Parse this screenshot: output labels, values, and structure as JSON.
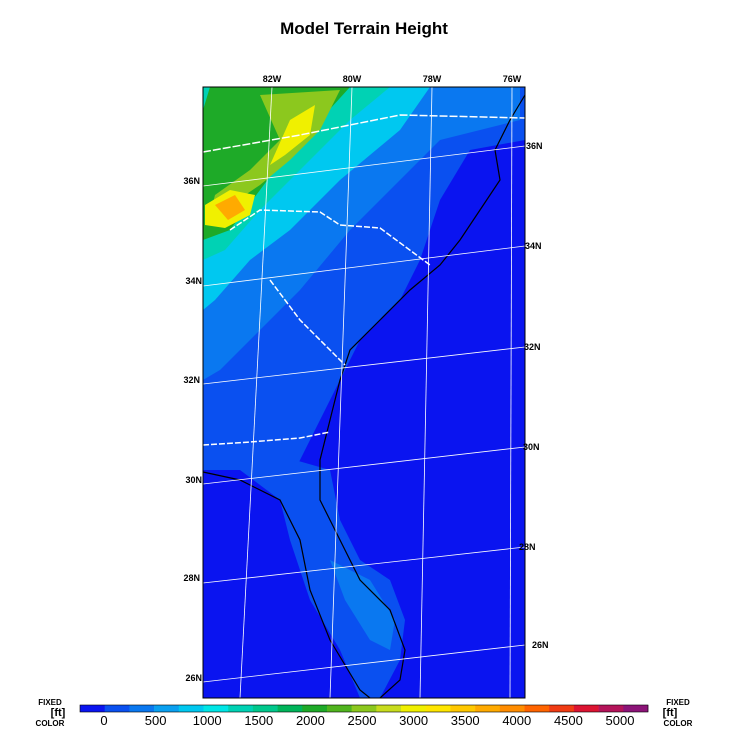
{
  "title": "Model Terrain Height",
  "lon_labels": [
    "82W",
    "80W",
    "78W",
    "76W"
  ],
  "lat_labels_left": [
    "36N",
    "34N",
    "32N",
    "30N",
    "28N",
    "26N"
  ],
  "lat_labels_right": [
    "36N",
    "34N",
    "32N",
    "30N",
    "28N",
    "26N"
  ],
  "colorbar": {
    "labels": [
      0,
      500,
      1000,
      1500,
      2000,
      2500,
      3000,
      3500,
      4000,
      4500,
      5000
    ],
    "colors": [
      "#0a14f0",
      "#0a50f0",
      "#0a78f0",
      "#0aa0f0",
      "#00c8f0",
      "#00e6e6",
      "#00d2b4",
      "#00c88c",
      "#00b45a",
      "#1eaa28",
      "#50b41e",
      "#8cc81e",
      "#c8dc1e",
      "#f0f000",
      "#ffe600",
      "#ffc800",
      "#ffaa00",
      "#ff8c00",
      "#ff6400",
      "#f03c14",
      "#dc1432",
      "#b4145a",
      "#8c1478"
    ],
    "left_top": "FIXED",
    "left_mid": "[ft]",
    "left_bot": "COLOR",
    "right_top": "FIXED",
    "right_mid": "[ft]",
    "right_bot": "COLOR"
  }
}
